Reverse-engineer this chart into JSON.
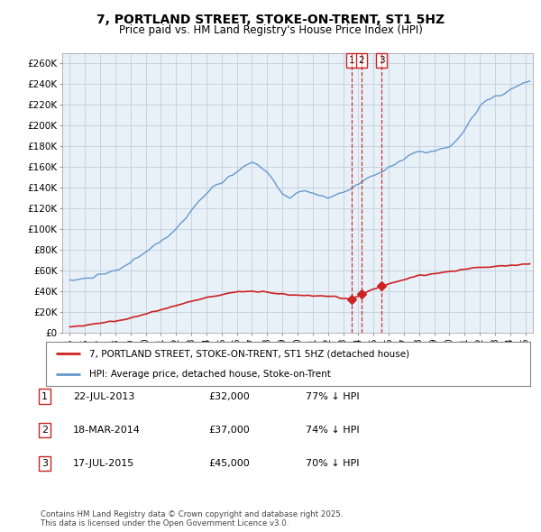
{
  "title": "7, PORTLAND STREET, STOKE-ON-TRENT, ST1 5HZ",
  "subtitle": "Price paid vs. HM Land Registry's House Price Index (HPI)",
  "ylabel_ticks": [
    "£0",
    "£20K",
    "£40K",
    "£60K",
    "£80K",
    "£100K",
    "£120K",
    "£140K",
    "£160K",
    "£180K",
    "£200K",
    "£220K",
    "£240K",
    "£260K"
  ],
  "ylim": [
    0,
    270000
  ],
  "xlim_start": 1994.5,
  "xlim_end": 2025.5,
  "background_color": "#ffffff",
  "chart_bg_color": "#e8f0f8",
  "grid_color": "#c8d4e0",
  "hpi_color": "#6699cc",
  "price_color": "#cc2222",
  "transaction_line_color": "#cc2222",
  "sale_points": [
    {
      "date": 2013.55,
      "price": 32000,
      "label": "1"
    },
    {
      "date": 2014.21,
      "price": 37000,
      "label": "2"
    },
    {
      "date": 2015.54,
      "price": 45000,
      "label": "3"
    }
  ],
  "legend_entry1": "7, PORTLAND STREET, STOKE-ON-TRENT, ST1 5HZ (detached house)",
  "legend_entry2": "HPI: Average price, detached house, Stoke-on-Trent",
  "table_entries": [
    {
      "num": "1",
      "date": "22-JUL-2013",
      "price": "£32,000",
      "pct": "77% ↓ HPI"
    },
    {
      "num": "2",
      "date": "18-MAR-2014",
      "price": "£37,000",
      "pct": "74% ↓ HPI"
    },
    {
      "num": "3",
      "date": "17-JUL-2015",
      "price": "£45,000",
      "pct": "70% ↓ HPI"
    }
  ],
  "footnote": "Contains HM Land Registry data © Crown copyright and database right 2025.\nThis data is licensed under the Open Government Licence v3.0."
}
